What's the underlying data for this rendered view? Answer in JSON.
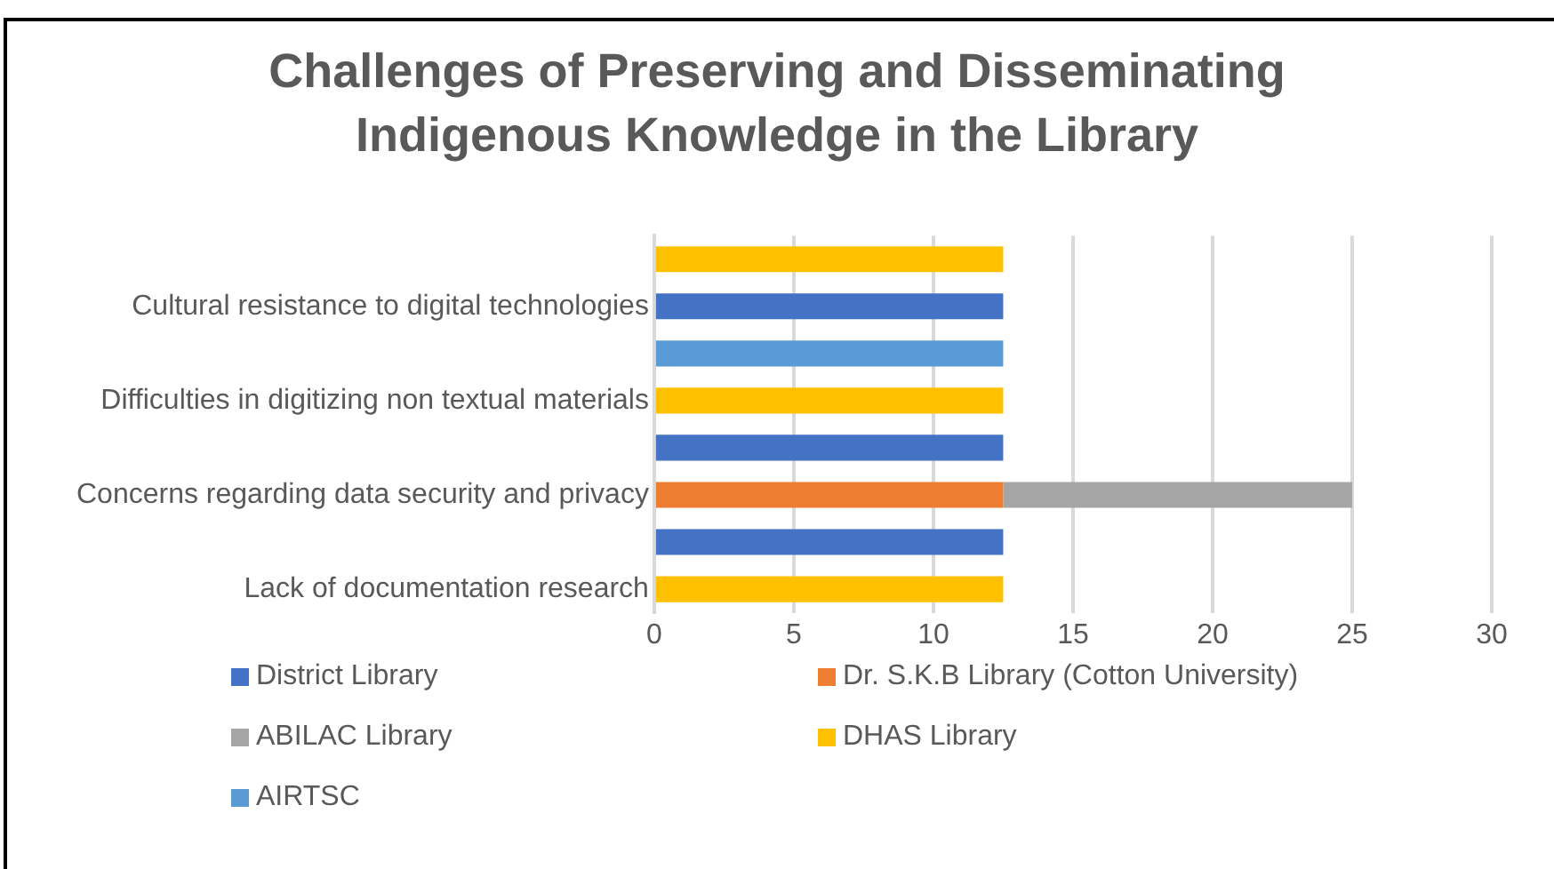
{
  "chart_data": {
    "type": "bar",
    "orientation": "horizontal",
    "stacked": true,
    "title": "Challenges of Preserving and Disseminating Indigenous Knowledge in the Library",
    "categories": [
      null,
      "Cultural resistance to digital technologies",
      null,
      "Difficulties in digitizing non textual materials",
      null,
      "Concerns regarding data security and privacy",
      null,
      "Lack of documentation research"
    ],
    "series": [
      {
        "name": "District Library",
        "color": "#4472c4",
        "values": [
          null,
          12.5,
          null,
          null,
          12.5,
          null,
          12.5,
          null
        ]
      },
      {
        "name": "Dr. S.K.B Library (Cotton University)",
        "color": "#ed7d31",
        "values": [
          null,
          null,
          null,
          null,
          null,
          12.5,
          null,
          null
        ]
      },
      {
        "name": "ABILAC Library",
        "color": "#a5a5a5",
        "values": [
          null,
          null,
          null,
          null,
          null,
          12.5,
          null,
          null
        ]
      },
      {
        "name": "DHAS Library",
        "color": "#ffc000",
        "values": [
          12.5,
          null,
          null,
          12.5,
          null,
          null,
          null,
          12.5
        ]
      },
      {
        "name": "AIRTSC",
        "color": "#5b9bd5",
        "values": [
          null,
          null,
          12.5,
          null,
          null,
          null,
          null,
          null
        ]
      }
    ],
    "xlim": [
      0,
      30
    ],
    "xticks": [
      0,
      5,
      10,
      15,
      20,
      25,
      30
    ],
    "grid": "x",
    "legend": "bottom"
  }
}
